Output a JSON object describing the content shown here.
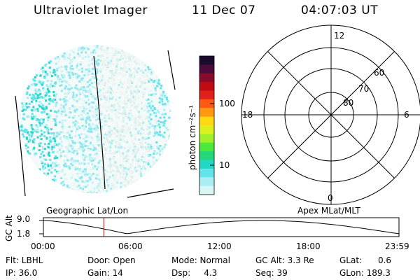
{
  "header": {
    "instrument": "Ultraviolet Imager",
    "date": "11 Dec 07",
    "time": "04:07:03 UT"
  },
  "colorbar": {
    "unit_label": "photon cm⁻²s⁻¹",
    "ticks": [
      "100",
      "10"
    ],
    "colors": [
      "#1a0a2e",
      "#4a0a3a",
      "#8a0a2a",
      "#c00a14",
      "#e2201a",
      "#ff5a14",
      "#ff9a10",
      "#ffd814",
      "#dcf020",
      "#a0f02a",
      "#4ce83a",
      "#22d87a",
      "#22d8c4",
      "#64e4ea",
      "#a8eef2",
      "#d8f6f6"
    ]
  },
  "polar": {
    "clock_labels": {
      "top": "12",
      "left": "18",
      "right": "6",
      "bottom": "0"
    },
    "lat_labels": [
      "60",
      "70",
      "80"
    ]
  },
  "timeline": {
    "left_label": "Geographic Lat/Lon",
    "right_label": "Apex MLat/MLT",
    "axis_title": "GC Alt",
    "y_top": "9.0",
    "y_bottom": "1.8",
    "x_ticks": [
      "00:00",
      "06:00",
      "12:00",
      "18:00",
      "23:59"
    ],
    "marker_time_fraction": 0.17
  },
  "info": {
    "flt": "Flt: LBHL",
    "ip": "IP: 36.0",
    "door": "Door: Open",
    "gain": "Gain: 14",
    "mode": "Mode: Normal",
    "dsp": "Dsp:     4.3",
    "gc_alt": "GC Alt: 3.3 Re",
    "seq": "Seq: 39",
    "glat": "GLat:      0.6",
    "glon": "GLon: 189.3"
  }
}
